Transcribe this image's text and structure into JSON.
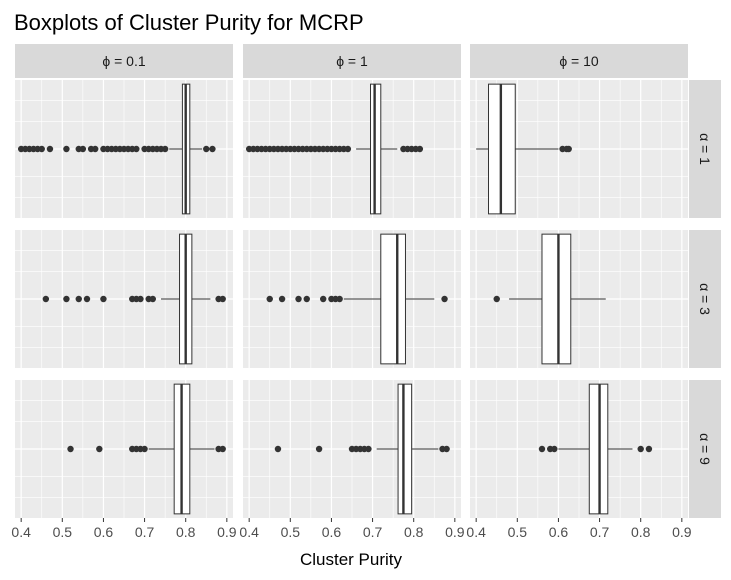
{
  "chart_data": {
    "type": "boxplot",
    "title": "Boxplots of Cluster Purity for MCRP",
    "xlabel": "Cluster Purity",
    "ylabel": "",
    "xlim": [
      0.385,
      0.915
    ],
    "x_ticks": [
      0.4,
      0.5,
      0.6,
      0.7,
      0.8,
      0.9
    ],
    "x_tick_labels": [
      "0.4",
      "0.5",
      "0.6",
      "0.7",
      "0.8",
      "0.9"
    ],
    "grid": true,
    "column_facet_labels": [
      "ϕ = 0.1",
      "ϕ = 1",
      "ϕ = 10"
    ],
    "row_facet_labels": [
      "α = 1",
      "α = 3",
      "α = 9"
    ],
    "panels": [
      {
        "row": 0,
        "col": 0,
        "whisker_low": 0.76,
        "q1": 0.792,
        "median": 0.8,
        "q3": 0.81,
        "whisker_high": 0.84,
        "outliers": [
          0.4,
          0.41,
          0.42,
          0.43,
          0.44,
          0.45,
          0.47,
          0.51,
          0.54,
          0.55,
          0.57,
          0.58,
          0.6,
          0.61,
          0.62,
          0.63,
          0.64,
          0.65,
          0.66,
          0.67,
          0.68,
          0.7,
          0.71,
          0.72,
          0.73,
          0.74,
          0.75,
          0.85,
          0.865
        ]
      },
      {
        "row": 0,
        "col": 1,
        "whisker_low": 0.66,
        "q1": 0.695,
        "median": 0.705,
        "q3": 0.72,
        "whisker_high": 0.76,
        "outliers": [
          0.4,
          0.41,
          0.42,
          0.43,
          0.44,
          0.45,
          0.46,
          0.47,
          0.48,
          0.49,
          0.5,
          0.51,
          0.52,
          0.53,
          0.54,
          0.55,
          0.56,
          0.57,
          0.58,
          0.59,
          0.6,
          0.61,
          0.62,
          0.63,
          0.64,
          0.775,
          0.785,
          0.795,
          0.805,
          0.815
        ]
      },
      {
        "row": 0,
        "col": 2,
        "whisker_low": 0.4,
        "q1": 0.43,
        "median": 0.46,
        "q3": 0.495,
        "whisker_high": 0.6,
        "outliers": [
          0.61,
          0.62,
          0.625
        ]
      },
      {
        "row": 1,
        "col": 0,
        "whisker_low": 0.74,
        "q1": 0.785,
        "median": 0.8,
        "q3": 0.815,
        "whisker_high": 0.86,
        "outliers": [
          0.46,
          0.51,
          0.54,
          0.56,
          0.6,
          0.67,
          0.68,
          0.69,
          0.71,
          0.72,
          0.88,
          0.89
        ]
      },
      {
        "row": 1,
        "col": 1,
        "whisker_low": 0.63,
        "q1": 0.72,
        "median": 0.76,
        "q3": 0.78,
        "whisker_high": 0.85,
        "outliers": [
          0.45,
          0.48,
          0.52,
          0.54,
          0.58,
          0.6,
          0.61,
          0.62,
          0.875
        ]
      },
      {
        "row": 1,
        "col": 2,
        "whisker_low": 0.48,
        "q1": 0.56,
        "median": 0.6,
        "q3": 0.63,
        "whisker_high": 0.715,
        "outliers": [
          0.45
        ]
      },
      {
        "row": 2,
        "col": 0,
        "whisker_low": 0.71,
        "q1": 0.772,
        "median": 0.79,
        "q3": 0.81,
        "whisker_high": 0.87,
        "outliers": [
          0.52,
          0.59,
          0.67,
          0.68,
          0.69,
          0.7,
          0.88,
          0.89
        ]
      },
      {
        "row": 2,
        "col": 1,
        "whisker_low": 0.71,
        "q1": 0.762,
        "median": 0.775,
        "q3": 0.795,
        "whisker_high": 0.86,
        "outliers": [
          0.47,
          0.57,
          0.65,
          0.66,
          0.67,
          0.68,
          0.69,
          0.87,
          0.88
        ]
      },
      {
        "row": 2,
        "col": 2,
        "whisker_low": 0.6,
        "q1": 0.675,
        "median": 0.7,
        "q3": 0.72,
        "whisker_high": 0.78,
        "outliers": [
          0.56,
          0.58,
          0.59,
          0.8,
          0.82
        ]
      }
    ]
  },
  "colors": {
    "panel_bg": "#ebebeb",
    "grid_major": "#ffffff",
    "strip_bg": "#d9d9d9",
    "box_fill": "#ffffff",
    "box_line": "#333333",
    "outlier": "#333333"
  }
}
